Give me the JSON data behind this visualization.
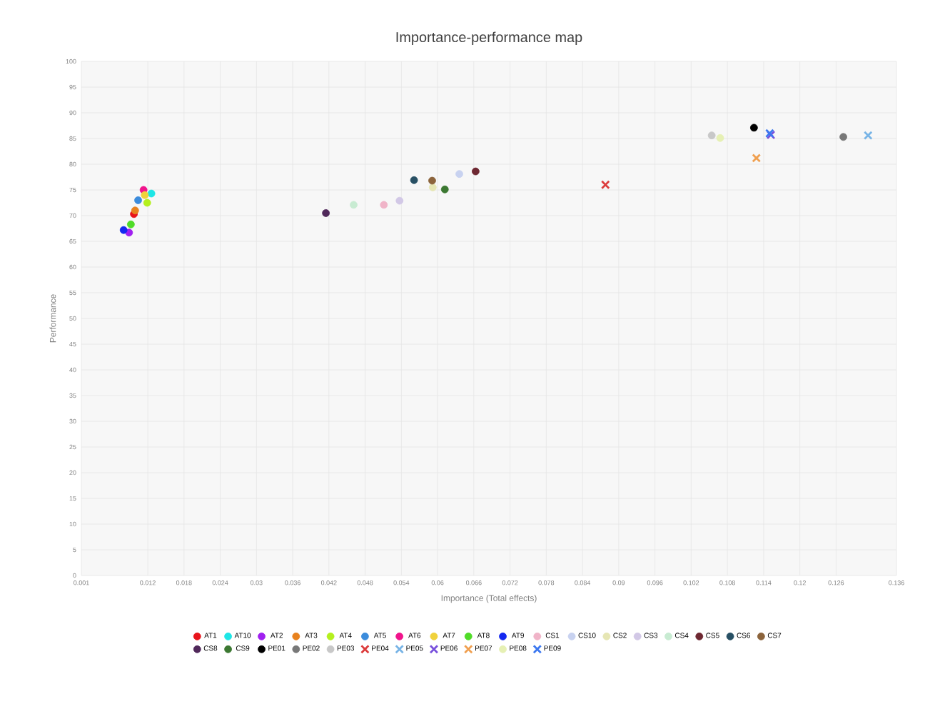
{
  "chart_data": {
    "type": "scatter",
    "title": "Importance-performance map",
    "xlabel": "Importance (Total effects)",
    "ylabel": "Performance",
    "xlim": [
      0.001,
      0.136
    ],
    "xticks": [
      0.001,
      0.012,
      0.018,
      0.024,
      0.03,
      0.036,
      0.042,
      0.048,
      0.054,
      0.06,
      0.066,
      0.072,
      0.078,
      0.084,
      0.09,
      0.096,
      0.102,
      0.108,
      0.114,
      0.12,
      0.126,
      0.136
    ],
    "ylim": [
      0,
      100
    ],
    "yticks": [
      0,
      5,
      10,
      15,
      20,
      25,
      30,
      35,
      40,
      45,
      50,
      55,
      60,
      65,
      70,
      75,
      80,
      85,
      90,
      95,
      100
    ],
    "grid": true,
    "legend": "bottom",
    "series": [
      {
        "name": "AT1",
        "color": "#e8141b",
        "marker": "circle",
        "x": [
          0.0097
        ],
        "values": [
          70.3
        ]
      },
      {
        "name": "AT10",
        "color": "#1ee6e6",
        "marker": "circle",
        "x": [
          0.0126
        ],
        "values": [
          74.3
        ]
      },
      {
        "name": "AT2",
        "color": "#a020f0",
        "marker": "circle",
        "x": [
          0.0089
        ],
        "values": [
          66.7
        ]
      },
      {
        "name": "AT3",
        "color": "#e8821e",
        "marker": "circle",
        "x": [
          0.0099
        ],
        "values": [
          71
        ]
      },
      {
        "name": "AT4",
        "color": "#b4f01e",
        "marker": "circle",
        "x": [
          0.0119
        ],
        "values": [
          72.5
        ]
      },
      {
        "name": "AT5",
        "color": "#3c8cdc",
        "marker": "circle",
        "x": [
          0.0104
        ],
        "values": [
          73
        ]
      },
      {
        "name": "AT6",
        "color": "#f0148c",
        "marker": "circle",
        "x": [
          0.0113
        ],
        "values": [
          75
        ]
      },
      {
        "name": "AT7",
        "color": "#f0d23c",
        "marker": "circle",
        "x": [
          0.0115
        ],
        "values": [
          74
        ]
      },
      {
        "name": "AT8",
        "color": "#50dc28",
        "marker": "circle",
        "x": [
          0.0092
        ],
        "values": [
          68.3
        ]
      },
      {
        "name": "AT9",
        "color": "#1428f0",
        "marker": "circle",
        "x": [
          0.008
        ],
        "values": [
          67.2
        ]
      },
      {
        "name": "CS1",
        "color": "#f0b4c8",
        "marker": "circle",
        "x": [
          0.0511
        ],
        "values": [
          72.1
        ]
      },
      {
        "name": "CS10",
        "color": "#c8d2f0",
        "marker": "circle",
        "x": [
          0.0636
        ],
        "values": [
          78.1
        ]
      },
      {
        "name": "CS2",
        "color": "#e6e6b4",
        "marker": "circle",
        "x": [
          0.0592
        ],
        "values": [
          75.5
        ]
      },
      {
        "name": "CS3",
        "color": "#d2c8e6",
        "marker": "circle",
        "x": [
          0.0537
        ],
        "values": [
          72.9
        ]
      },
      {
        "name": "CS4",
        "color": "#c8ebd2",
        "marker": "circle",
        "x": [
          0.0461
        ],
        "values": [
          72.1
        ]
      },
      {
        "name": "CS5",
        "color": "#6e2832",
        "marker": "circle",
        "x": [
          0.0663
        ],
        "values": [
          78.6
        ]
      },
      {
        "name": "CS6",
        "color": "#285064",
        "marker": "circle",
        "x": [
          0.0561
        ],
        "values": [
          76.9
        ]
      },
      {
        "name": "CS7",
        "color": "#8c643c",
        "marker": "circle",
        "x": [
          0.0591
        ],
        "values": [
          76.8
        ]
      },
      {
        "name": "CS8",
        "color": "#50285a",
        "marker": "circle",
        "x": [
          0.0415
        ],
        "values": [
          70.5
        ]
      },
      {
        "name": "CS9",
        "color": "#3c7832",
        "marker": "circle",
        "x": [
          0.0612
        ],
        "values": [
          75.1
        ]
      },
      {
        "name": "PE01",
        "color": "#000000",
        "marker": "circle",
        "x": [
          0.1124
        ],
        "values": [
          87.1
        ]
      },
      {
        "name": "PE02",
        "color": "#787878",
        "marker": "circle",
        "x": [
          0.1272
        ],
        "values": [
          85.3
        ]
      },
      {
        "name": "PE03",
        "color": "#c8c8c8",
        "marker": "circle",
        "x": [
          0.1054
        ],
        "values": [
          85.6
        ]
      },
      {
        "name": "PE04",
        "color": "#dc3c3c",
        "marker": "cross",
        "x": [
          0.0878
        ],
        "values": [
          76
        ]
      },
      {
        "name": "PE05",
        "color": "#78b4e6",
        "marker": "cross",
        "x": [
          0.1313
        ],
        "values": [
          85.6
        ]
      },
      {
        "name": "PE06",
        "color": "#7850dc",
        "marker": "cross",
        "x": [
          0.1152
        ],
        "values": [
          85.7
        ]
      },
      {
        "name": "PE07",
        "color": "#f0a050",
        "marker": "cross",
        "x": [
          0.1128
        ],
        "values": [
          81.2
        ]
      },
      {
        "name": "PE08",
        "color": "#e6f0b4",
        "marker": "circle",
        "x": [
          0.1068
        ],
        "values": [
          85.1
        ]
      },
      {
        "name": "PE09",
        "color": "#3c78f0",
        "marker": "cross",
        "x": [
          0.115
        ],
        "values": [
          86
        ]
      }
    ]
  }
}
